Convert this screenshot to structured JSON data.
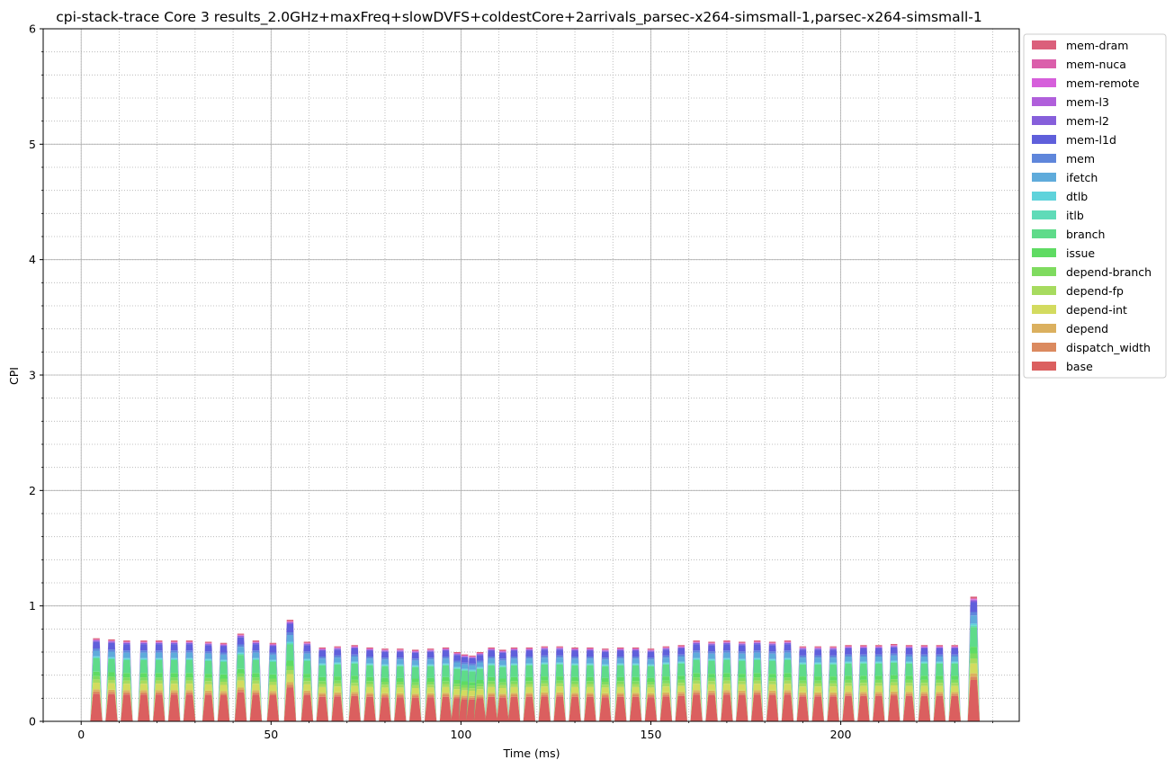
{
  "chart_data": {
    "type": "area",
    "title": "cpi-stack-trace Core 3 results_2.0GHz+maxFreq+slowDVFS+coldestCore+2arrivals_parsec-x264-simsmall-1,parsec-x264-simsmall-1",
    "xlabel": "Time (ms)",
    "ylabel": "CPI",
    "xlim": [
      -10,
      247
    ],
    "ylim": [
      0,
      6
    ],
    "xticks": [
      0,
      50,
      100,
      150,
      200
    ],
    "yticks": [
      0,
      1,
      2,
      3,
      4,
      5,
      6
    ],
    "grid": true,
    "minor_grid": true,
    "legend_placement": "outside top-right",
    "series_order_bottom_to_top": [
      "base",
      "dispatch_width",
      "depend",
      "depend-int",
      "depend-fp",
      "depend-branch",
      "issue",
      "branch",
      "itlb",
      "dtlb",
      "ifetch",
      "mem",
      "mem-l1d",
      "mem-l2",
      "mem-l3",
      "mem-remote",
      "mem-nuca",
      "mem-dram"
    ],
    "legend": [
      {
        "name": "mem-dram",
        "color": "#db5f7b"
      },
      {
        "name": "mem-nuca",
        "color": "#db5fab"
      },
      {
        "name": "mem-remote",
        "color": "#d65fdb"
      },
      {
        "name": "mem-l3",
        "color": "#b05fdb"
      },
      {
        "name": "mem-l2",
        "color": "#865fdb"
      },
      {
        "name": "mem-l1d",
        "color": "#5f5fdb"
      },
      {
        "name": "mem",
        "color": "#5f86db"
      },
      {
        "name": "ifetch",
        "color": "#5fabdb"
      },
      {
        "name": "dtlb",
        "color": "#5fd3db"
      },
      {
        "name": "itlb",
        "color": "#5fdbb8"
      },
      {
        "name": "branch",
        "color": "#5fdb8a"
      },
      {
        "name": "issue",
        "color": "#5fdb63"
      },
      {
        "name": "depend-branch",
        "color": "#7fdb5f"
      },
      {
        "name": "depend-fp",
        "color": "#a7db5f"
      },
      {
        "name": "depend-int",
        "color": "#d3db5f"
      },
      {
        "name": "depend",
        "color": "#dbb05f"
      },
      {
        "name": "dispatch_width",
        "color": "#db8a5f"
      },
      {
        "name": "base",
        "color": "#db5f5f"
      }
    ],
    "pulse_profile": {
      "base": 0.25,
      "dispatch_width": 0.02,
      "depend": 0.02,
      "depend-int": 0.06,
      "depend-fp": 0.03,
      "depend-branch": 0.03,
      "issue": 0.04,
      "branch": 0.12,
      "itlb": 0.01,
      "dtlb": 0.01,
      "ifetch": 0.05,
      "mem": 0.02,
      "mem-l1d": 0.06,
      "mem-l2": 0.01,
      "mem-l3": 0.005,
      "mem-remote": 0.003,
      "mem-nuca": 0.005,
      "mem-dram": 0.01
    },
    "pulses": [
      {
        "t": 4,
        "total": 0.72
      },
      {
        "t": 8,
        "total": 0.71
      },
      {
        "t": 12,
        "total": 0.7
      },
      {
        "t": 16.5,
        "total": 0.7
      },
      {
        "t": 20.5,
        "total": 0.7
      },
      {
        "t": 24.5,
        "total": 0.7
      },
      {
        "t": 28.5,
        "total": 0.7
      },
      {
        "t": 33.5,
        "total": 0.69
      },
      {
        "t": 37.5,
        "total": 0.68
      },
      {
        "t": 42,
        "total": 0.76
      },
      {
        "t": 46,
        "total": 0.7
      },
      {
        "t": 50.5,
        "total": 0.68
      },
      {
        "t": 55,
        "total": 0.88
      },
      {
        "t": 59.5,
        "total": 0.69
      },
      {
        "t": 63.5,
        "total": 0.64
      },
      {
        "t": 67.5,
        "total": 0.65
      },
      {
        "t": 72,
        "total": 0.66
      },
      {
        "t": 76,
        "total": 0.64
      },
      {
        "t": 80,
        "total": 0.63
      },
      {
        "t": 84,
        "total": 0.63
      },
      {
        "t": 88,
        "total": 0.62
      },
      {
        "t": 92,
        "total": 0.63
      },
      {
        "t": 96,
        "total": 0.64
      },
      {
        "t": 99,
        "total": 0.6
      },
      {
        "t": 101,
        "total": 0.58
      },
      {
        "t": 103,
        "total": 0.57
      },
      {
        "t": 105,
        "total": 0.6
      },
      {
        "t": 108,
        "total": 0.64
      },
      {
        "t": 111,
        "total": 0.62
      },
      {
        "t": 114,
        "total": 0.64
      },
      {
        "t": 118,
        "total": 0.64
      },
      {
        "t": 122,
        "total": 0.65
      },
      {
        "t": 126,
        "total": 0.65
      },
      {
        "t": 130,
        "total": 0.64
      },
      {
        "t": 134,
        "total": 0.64
      },
      {
        "t": 138,
        "total": 0.63
      },
      {
        "t": 142,
        "total": 0.64
      },
      {
        "t": 146,
        "total": 0.64
      },
      {
        "t": 150,
        "total": 0.63
      },
      {
        "t": 154,
        "total": 0.65
      },
      {
        "t": 158,
        "total": 0.66
      },
      {
        "t": 162,
        "total": 0.7
      },
      {
        "t": 166,
        "total": 0.69
      },
      {
        "t": 170,
        "total": 0.7
      },
      {
        "t": 174,
        "total": 0.69
      },
      {
        "t": 178,
        "total": 0.7
      },
      {
        "t": 182,
        "total": 0.69
      },
      {
        "t": 186,
        "total": 0.7
      },
      {
        "t": 190,
        "total": 0.65
      },
      {
        "t": 194,
        "total": 0.65
      },
      {
        "t": 198,
        "total": 0.65
      },
      {
        "t": 202,
        "total": 0.66
      },
      {
        "t": 206,
        "total": 0.66
      },
      {
        "t": 210,
        "total": 0.66
      },
      {
        "t": 214,
        "total": 0.67
      },
      {
        "t": 218,
        "total": 0.66
      },
      {
        "t": 222,
        "total": 0.66
      },
      {
        "t": 226,
        "total": 0.66
      },
      {
        "t": 230,
        "total": 0.66
      },
      {
        "t": 235,
        "total": 1.08
      }
    ],
    "pulse_half_width_ms": 1.6
  }
}
